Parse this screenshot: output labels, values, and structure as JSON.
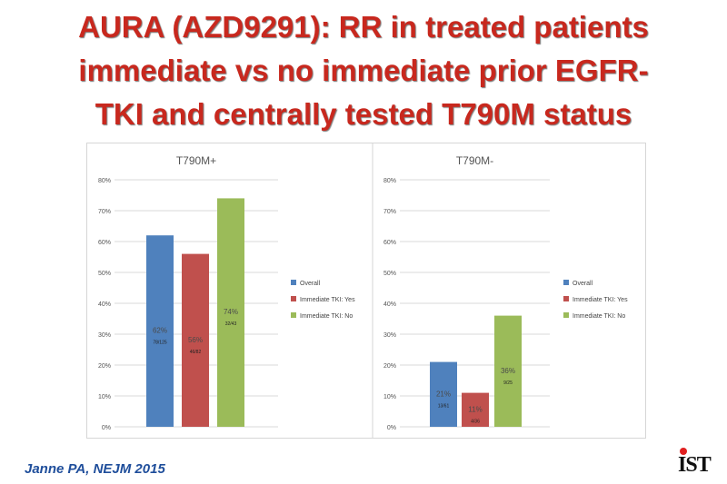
{
  "slide": {
    "title_lines": [
      "AURA (AZD9291): RR in treated patients",
      "immediate vs no immediate prior EGFR-",
      "TKI and centrally tested T790M status"
    ],
    "citation": "Janne PA, NEJM 2015",
    "logo_text": "IST"
  },
  "colors": {
    "title": "#c8281e",
    "citation": "#1f4e9b",
    "Overall": "#4f81bd",
    "Immediate TKI: Yes": "#c0504d",
    "Immediate TKI: No": "#9bbb59"
  },
  "chart_data": [
    {
      "type": "bar",
      "title": "T790M+",
      "categories": [
        "Overall",
        "Immediate TKI: Yes",
        "Immediate TKI: No"
      ],
      "values": [
        62,
        56,
        74
      ],
      "value_labels": [
        "62%",
        "56%",
        "74%"
      ],
      "count_labels": [
        "78/125",
        "46/82",
        "32/43"
      ],
      "ylim": [
        0,
        80
      ],
      "yticks": [
        "0%",
        "10%",
        "20%",
        "30%",
        "40%",
        "50%",
        "60%",
        "70%",
        "80%"
      ],
      "grid": true,
      "legend": [
        "Overall",
        "Immediate TKI: Yes",
        "Immediate TKI: No"
      ],
      "legend_position": "right"
    },
    {
      "type": "bar",
      "title": "T790M-",
      "categories": [
        "Overall",
        "Immediate TKI: Yes",
        "Immediate TKI: No"
      ],
      "values": [
        21,
        11,
        36
      ],
      "value_labels": [
        "21%",
        "11%",
        "36%"
      ],
      "count_labels": [
        "13/61",
        "4/36",
        "9/25"
      ],
      "ylim": [
        0,
        80
      ],
      "yticks": [
        "0%",
        "10%",
        "20%",
        "30%",
        "40%",
        "50%",
        "60%",
        "70%",
        "80%"
      ],
      "grid": true,
      "legend": [
        "Overall",
        "Immediate TKI: Yes",
        "Immediate TKI: No"
      ],
      "legend_position": "right"
    }
  ]
}
